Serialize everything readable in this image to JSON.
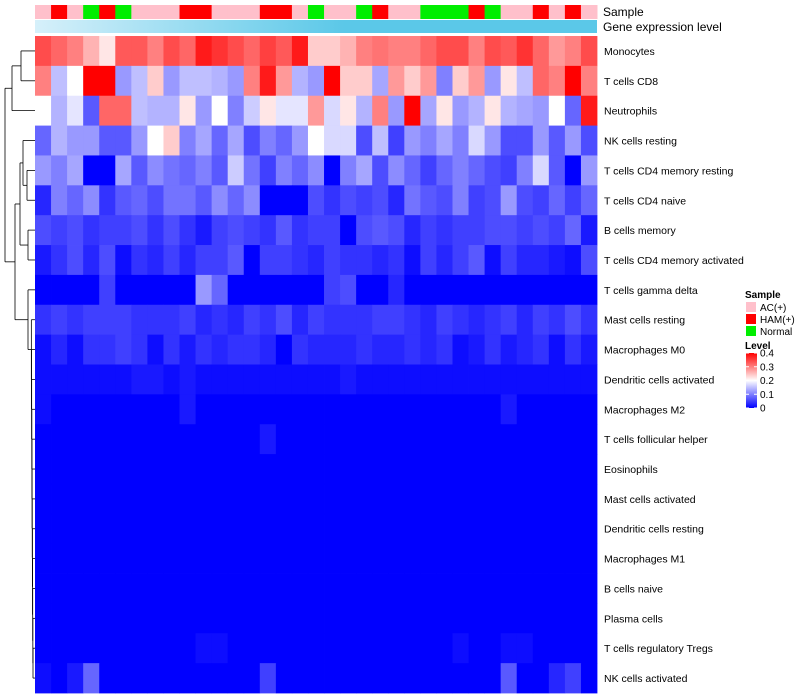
{
  "chart_data": {
    "type": "heatmap",
    "sample_annotation_title": "Sample",
    "expression_annotation_title": "Gene expression level",
    "sample_groups": [
      {
        "name": "AC(+)",
        "color": "#ffc0cb"
      },
      {
        "name": "HAM(+)",
        "color": "#ff0000"
      },
      {
        "name": "Normal",
        "color": "#00ee00"
      }
    ],
    "sample_annotation": [
      "AC(+)",
      "HAM(+)",
      "AC(+)",
      "Normal",
      "HAM(+)",
      "Normal",
      "AC(+)",
      "AC(+)",
      "AC(+)",
      "HAM(+)",
      "HAM(+)",
      "AC(+)",
      "AC(+)",
      "AC(+)",
      "HAM(+)",
      "HAM(+)",
      "AC(+)",
      "Normal",
      "AC(+)",
      "AC(+)",
      "Normal",
      "HAM(+)",
      "AC(+)",
      "AC(+)",
      "Normal",
      "Normal",
      "Normal",
      "HAM(+)",
      "Normal",
      "AC(+)",
      "AC(+)",
      "HAM(+)",
      "AC(+)",
      "HAM(+)",
      "AC(+)"
    ],
    "expression_bar_color": "#5bc8e8",
    "expression_bar_start_color": "#d6f0fa",
    "low_color": "#0000ff",
    "mid_color": "#ffffff",
    "high_color": "#ff0000",
    "legend_title": "Level",
    "legend_ticks": [
      0.4,
      0.3,
      0.2,
      0.1,
      0
    ],
    "value_range": [
      0,
      0.4
    ],
    "rows": [
      "Monocytes",
      "T cells CD8",
      "Neutrophils",
      "NK cells resting",
      "T cells CD4 memory resting",
      "T cells CD4 naive",
      "B cells memory",
      "T cells CD4 memory activated",
      "T cells gamma delta",
      "Mast cells resting",
      "Macrophages M0",
      "Dendritic cells activated",
      "Macrophages M2",
      "T cells follicular helper",
      "Eosinophils",
      "Mast cells activated",
      "Dendritic cells resting",
      "Macrophages M1",
      "B cells naive",
      "Plasma cells",
      "T cells regulatory  Tregs",
      "NK cells activated"
    ],
    "values": [
      [
        0.34,
        0.32,
        0.3,
        0.26,
        0.22,
        0.33,
        0.33,
        0.3,
        0.34,
        0.32,
        0.38,
        0.36,
        0.34,
        0.32,
        0.35,
        0.33,
        0.38,
        0.24,
        0.24,
        0.26,
        0.3,
        0.31,
        0.3,
        0.3,
        0.32,
        0.34,
        0.34,
        0.3,
        0.34,
        0.33,
        0.36,
        0.32,
        0.28,
        0.3,
        0.34
      ],
      [
        0.3,
        0.15,
        0.2,
        0.4,
        0.4,
        0.12,
        0.15,
        0.24,
        0.12,
        0.15,
        0.15,
        0.14,
        0.12,
        0.3,
        0.38,
        0.28,
        0.14,
        0.12,
        0.4,
        0.24,
        0.24,
        0.13,
        0.28,
        0.24,
        0.28,
        0.1,
        0.24,
        0.28,
        0.12,
        0.22,
        0.15,
        0.32,
        0.3,
        0.4,
        0.3
      ],
      [
        0.2,
        0.14,
        0.18,
        0.07,
        0.32,
        0.32,
        0.15,
        0.14,
        0.14,
        0.22,
        0.12,
        0.2,
        0.1,
        0.16,
        0.22,
        0.18,
        0.18,
        0.28,
        0.17,
        0.22,
        0.14,
        0.3,
        0.12,
        0.4,
        0.13,
        0.22,
        0.12,
        0.14,
        0.22,
        0.14,
        0.13,
        0.12,
        0.2,
        0.08,
        0.38
      ],
      [
        0.08,
        0.14,
        0.12,
        0.12,
        0.07,
        0.07,
        0.12,
        0.2,
        0.24,
        0.1,
        0.13,
        0.08,
        0.13,
        0.06,
        0.1,
        0.08,
        0.12,
        0.2,
        0.17,
        0.17,
        0.06,
        0.15,
        0.05,
        0.12,
        0.1,
        0.13,
        0.1,
        0.17,
        0.12,
        0.06,
        0.06,
        0.12,
        0.07,
        0.12,
        0.06
      ],
      [
        0.12,
        0.1,
        0.13,
        0.0,
        0.0,
        0.13,
        0.07,
        0.11,
        0.09,
        0.08,
        0.1,
        0.07,
        0.16,
        0.09,
        0.05,
        0.1,
        0.08,
        0.11,
        0.0,
        0.1,
        0.13,
        0.06,
        0.11,
        0.08,
        0.05,
        0.08,
        0.1,
        0.08,
        0.06,
        0.05,
        0.1,
        0.17,
        0.07,
        0.0,
        0.12
      ],
      [
        0.03,
        0.1,
        0.08,
        0.11,
        0.04,
        0.07,
        0.08,
        0.06,
        0.09,
        0.09,
        0.07,
        0.11,
        0.08,
        0.11,
        0.0,
        0.0,
        0.0,
        0.06,
        0.04,
        0.06,
        0.05,
        0.06,
        0.03,
        0.09,
        0.07,
        0.06,
        0.1,
        0.05,
        0.06,
        0.12,
        0.06,
        0.05,
        0.08,
        0.05,
        0.08
      ],
      [
        0.06,
        0.05,
        0.06,
        0.04,
        0.05,
        0.05,
        0.06,
        0.04,
        0.06,
        0.04,
        0.02,
        0.05,
        0.06,
        0.05,
        0.04,
        0.07,
        0.04,
        0.05,
        0.05,
        0.0,
        0.06,
        0.07,
        0.06,
        0.03,
        0.05,
        0.04,
        0.05,
        0.05,
        0.06,
        0.06,
        0.05,
        0.06,
        0.05,
        0.08,
        0.02
      ],
      [
        0.02,
        0.04,
        0.06,
        0.03,
        0.06,
        0.01,
        0.04,
        0.03,
        0.05,
        0.03,
        0.05,
        0.05,
        0.07,
        0.0,
        0.05,
        0.05,
        0.04,
        0.03,
        0.05,
        0.04,
        0.04,
        0.03,
        0.04,
        0.01,
        0.05,
        0.03,
        0.05,
        0.07,
        0.01,
        0.05,
        0.03,
        0.03,
        0.02,
        0.01,
        0.06
      ],
      [
        0.0,
        0.0,
        0.0,
        0.0,
        0.05,
        0.0,
        0.0,
        0.0,
        0.0,
        0.0,
        0.12,
        0.08,
        0.0,
        0.0,
        0.0,
        0.0,
        0.0,
        0.0,
        0.05,
        0.06,
        0.0,
        0.0,
        0.03,
        0.0,
        0.0,
        0.0,
        0.0,
        0.0,
        0.0,
        0.0,
        0.0,
        0.0,
        0.0,
        0.0,
        0.0
      ],
      [
        0.04,
        0.05,
        0.04,
        0.05,
        0.05,
        0.05,
        0.04,
        0.04,
        0.04,
        0.05,
        0.03,
        0.04,
        0.03,
        0.05,
        0.04,
        0.06,
        0.03,
        0.05,
        0.04,
        0.04,
        0.04,
        0.05,
        0.05,
        0.04,
        0.03,
        0.05,
        0.04,
        0.03,
        0.04,
        0.05,
        0.03,
        0.05,
        0.04,
        0.06,
        0.04
      ],
      [
        0.01,
        0.03,
        0.01,
        0.04,
        0.04,
        0.05,
        0.04,
        0.01,
        0.04,
        0.02,
        0.04,
        0.03,
        0.04,
        0.04,
        0.03,
        0.0,
        0.04,
        0.03,
        0.03,
        0.03,
        0.04,
        0.03,
        0.03,
        0.04,
        0.03,
        0.04,
        0.01,
        0.02,
        0.04,
        0.02,
        0.03,
        0.04,
        0.01,
        0.04,
        0.02
      ],
      [
        0.01,
        0.01,
        0.01,
        0.01,
        0.01,
        0.01,
        0.02,
        0.02,
        0.01,
        0.02,
        0.01,
        0.01,
        0.01,
        0.01,
        0.01,
        0.01,
        0.01,
        0.01,
        0.01,
        0.02,
        0.01,
        0.01,
        0.01,
        0.01,
        0.01,
        0.01,
        0.01,
        0.01,
        0.01,
        0.01,
        0.01,
        0.01,
        0.01,
        0.01,
        0.01
      ],
      [
        0.01,
        0.0,
        0.0,
        0.0,
        0.0,
        0.0,
        0.0,
        0.0,
        0.0,
        0.02,
        0.0,
        0.0,
        0.0,
        0.0,
        0.0,
        0.0,
        0.0,
        0.0,
        0.0,
        0.0,
        0.0,
        0.0,
        0.0,
        0.0,
        0.0,
        0.0,
        0.0,
        0.0,
        0.0,
        0.02,
        0.0,
        0.0,
        0.0,
        0.0,
        0.0
      ],
      [
        0.0,
        0.0,
        0.0,
        0.0,
        0.0,
        0.0,
        0.0,
        0.0,
        0.0,
        0.0,
        0.0,
        0.0,
        0.0,
        0.0,
        0.02,
        0.0,
        0.0,
        0.0,
        0.0,
        0.0,
        0.0,
        0.0,
        0.0,
        0.0,
        0.0,
        0.0,
        0.0,
        0.0,
        0.0,
        0.0,
        0.0,
        0.0,
        0.0,
        0.0,
        0.0
      ],
      [
        0.0,
        0.0,
        0.0,
        0.0,
        0.0,
        0.0,
        0.0,
        0.0,
        0.0,
        0.0,
        0.0,
        0.0,
        0.0,
        0.0,
        0.0,
        0.0,
        0.0,
        0.0,
        0.0,
        0.0,
        0.0,
        0.0,
        0.0,
        0.0,
        0.0,
        0.0,
        0.0,
        0.0,
        0.0,
        0.0,
        0.0,
        0.0,
        0.0,
        0.0,
        0.0
      ],
      [
        0.0,
        0.0,
        0.0,
        0.0,
        0.0,
        0.0,
        0.0,
        0.0,
        0.0,
        0.0,
        0.0,
        0.0,
        0.0,
        0.0,
        0.0,
        0.0,
        0.0,
        0.0,
        0.0,
        0.0,
        0.0,
        0.0,
        0.0,
        0.0,
        0.0,
        0.0,
        0.0,
        0.0,
        0.0,
        0.0,
        0.0,
        0.0,
        0.0,
        0.0,
        0.0
      ],
      [
        0.0,
        0.0,
        0.0,
        0.0,
        0.0,
        0.0,
        0.0,
        0.0,
        0.0,
        0.0,
        0.0,
        0.0,
        0.0,
        0.0,
        0.0,
        0.0,
        0.0,
        0.0,
        0.0,
        0.0,
        0.0,
        0.0,
        0.0,
        0.0,
        0.0,
        0.0,
        0.0,
        0.0,
        0.0,
        0.0,
        0.0,
        0.0,
        0.0,
        0.0,
        0.0
      ],
      [
        0.0,
        0.0,
        0.0,
        0.0,
        0.0,
        0.0,
        0.0,
        0.0,
        0.0,
        0.0,
        0.0,
        0.0,
        0.0,
        0.0,
        0.0,
        0.0,
        0.0,
        0.0,
        0.0,
        0.0,
        0.0,
        0.0,
        0.0,
        0.0,
        0.0,
        0.0,
        0.0,
        0.0,
        0.0,
        0.0,
        0.0,
        0.0,
        0.0,
        0.0,
        0.0
      ],
      [
        0.0,
        0.0,
        0.0,
        0.0,
        0.0,
        0.0,
        0.0,
        0.0,
        0.0,
        0.0,
        0.0,
        0.0,
        0.0,
        0.0,
        0.0,
        0.0,
        0.0,
        0.0,
        0.0,
        0.0,
        0.0,
        0.0,
        0.0,
        0.0,
        0.0,
        0.0,
        0.0,
        0.0,
        0.0,
        0.0,
        0.0,
        0.0,
        0.0,
        0.0,
        0.0
      ],
      [
        0.0,
        0.0,
        0.0,
        0.0,
        0.0,
        0.0,
        0.0,
        0.0,
        0.0,
        0.0,
        0.0,
        0.0,
        0.0,
        0.0,
        0.0,
        0.0,
        0.0,
        0.0,
        0.0,
        0.0,
        0.0,
        0.0,
        0.0,
        0.0,
        0.0,
        0.0,
        0.0,
        0.0,
        0.0,
        0.0,
        0.0,
        0.0,
        0.0,
        0.0,
        0.0
      ],
      [
        0.0,
        0.0,
        0.0,
        0.0,
        0.0,
        0.0,
        0.0,
        0.0,
        0.0,
        0.0,
        0.01,
        0.01,
        0.0,
        0.0,
        0.0,
        0.0,
        0.0,
        0.0,
        0.0,
        0.0,
        0.0,
        0.0,
        0.0,
        0.0,
        0.0,
        0.0,
        0.01,
        0.0,
        0.0,
        0.01,
        0.01,
        0.0,
        0.0,
        0.0,
        0.0
      ],
      [
        0.01,
        0.0,
        0.02,
        0.08,
        0.0,
        0.0,
        0.0,
        0.0,
        0.0,
        0.0,
        0.0,
        0.0,
        0.0,
        0.0,
        0.05,
        0.0,
        0.0,
        0.0,
        0.0,
        0.0,
        0.0,
        0.0,
        0.0,
        0.0,
        0.0,
        0.0,
        0.0,
        0.0,
        0.0,
        0.07,
        0.0,
        0.0,
        0.03,
        0.05,
        0.0
      ]
    ]
  }
}
